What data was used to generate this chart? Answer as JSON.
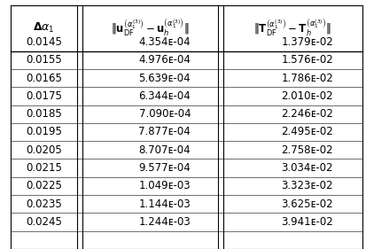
{
  "delta_alpha": [
    "0.0145",
    "0.0155",
    "0.0165",
    "0.0175",
    "0.0185",
    "0.0195",
    "0.0205",
    "0.0215",
    "0.0225",
    "0.0235",
    "0.0245"
  ],
  "col2": [
    "4.354ᴇ-04",
    "4.976ᴇ-04",
    "5.639ᴇ-04",
    "6.344ᴇ-04",
    "7.090ᴇ-04",
    "7.877ᴇ-04",
    "8.707ᴇ-04",
    "9.577ᴇ-04",
    "1.049ᴇ-03",
    "1.144ᴇ-03",
    "1.244ᴇ-03"
  ],
  "col3": [
    "1.379ᴇ-02",
    "1.576ᴇ-02",
    "1.786ᴇ-02",
    "2.010ᴇ-02",
    "2.246ᴇ-02",
    "2.495ᴇ-02",
    "2.758ᴇ-02",
    "3.034ᴇ-02",
    "3.323ᴇ-02",
    "3.625ᴇ-02",
    "3.941ᴇ-02"
  ],
  "bg_color": "#ffffff",
  "line_color": "#000000",
  "font_size": 8.5,
  "header_font_size": 8.5
}
